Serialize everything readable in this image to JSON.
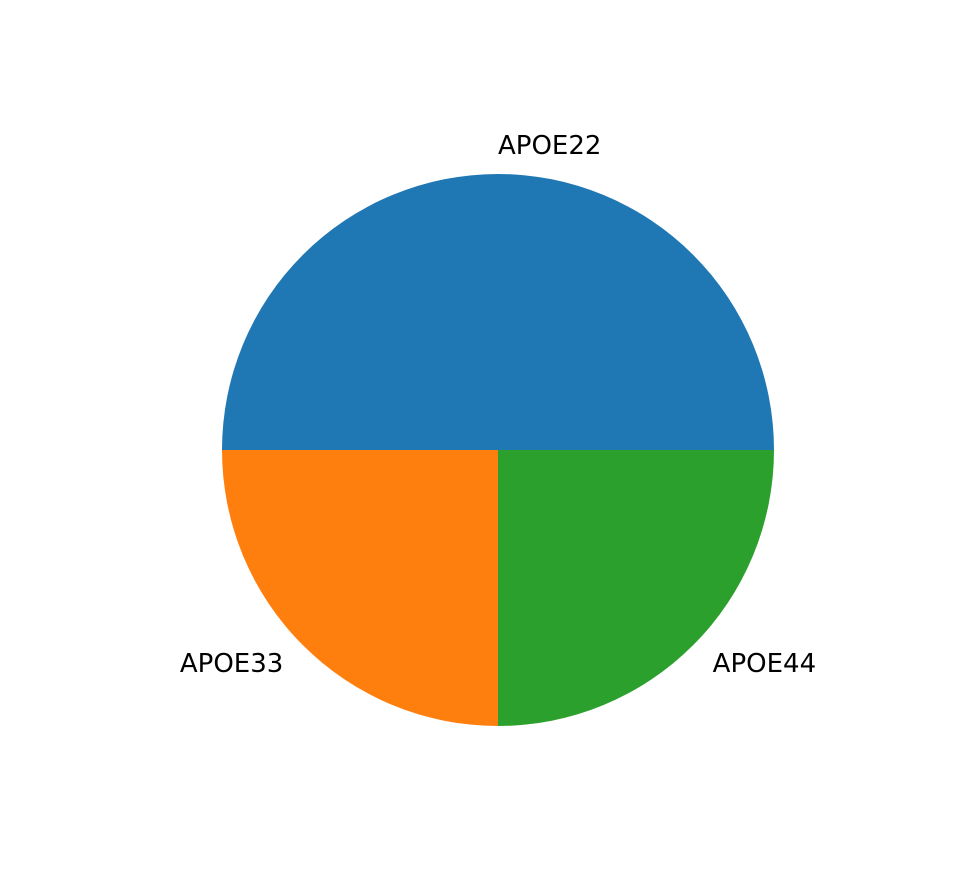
{
  "chart_data": {
    "type": "pie",
    "title": "",
    "categories": [
      "APOE22",
      "APOE33",
      "APOE44"
    ],
    "values": [
      2,
      1,
      1
    ],
    "colors": [
      "#1f77b4",
      "#ff7f0e",
      "#2ca02c"
    ],
    "start_angle_deg": 0,
    "direction": "counterclockwise",
    "legend": "none"
  }
}
